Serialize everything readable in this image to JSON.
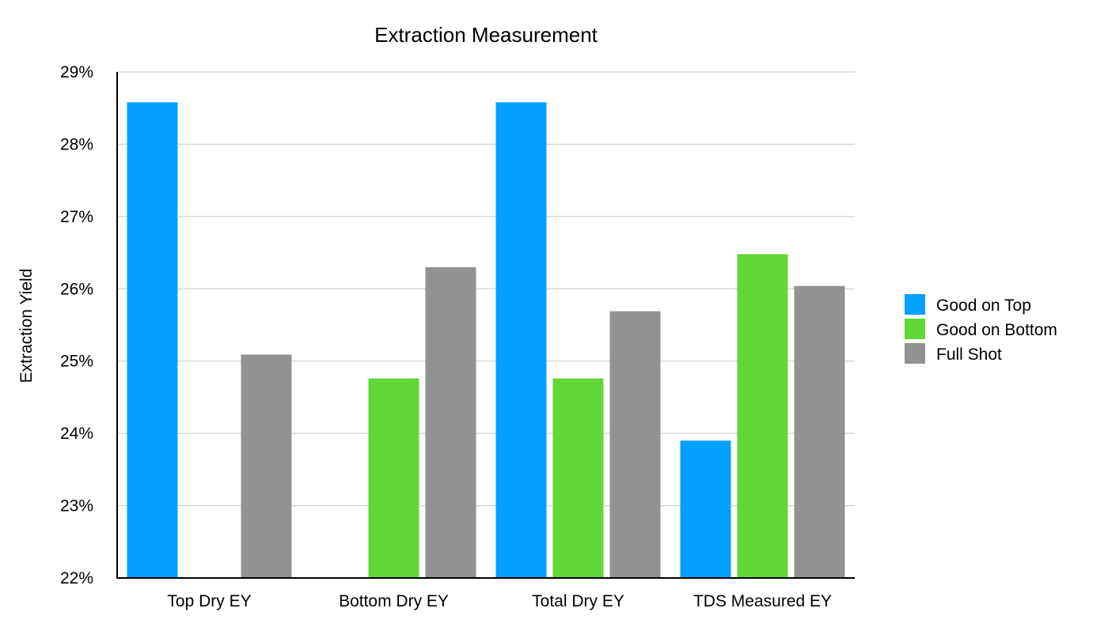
{
  "chart_data": {
    "type": "bar",
    "title": "Extraction Measurement",
    "xlabel": "",
    "ylabel": "Extraction Yield",
    "ylim": [
      22,
      29
    ],
    "yticks": [
      22,
      23,
      24,
      25,
      26,
      27,
      28,
      29
    ],
    "ytick_labels": [
      "22%",
      "23%",
      "24%",
      "25%",
      "26%",
      "27%",
      "28%",
      "29%"
    ],
    "grid": true,
    "legend_position": "right",
    "categories": [
      "Top Dry EY",
      "Bottom Dry EY",
      "Total Dry EY",
      "TDS Measured EY"
    ],
    "series": [
      {
        "name": "Good on Top",
        "color": "#04A0FF",
        "values": [
          28.58,
          null,
          28.58,
          23.9
        ]
      },
      {
        "name": "Good on Bottom",
        "color": "#61D836",
        "values": [
          null,
          24.76,
          24.76,
          26.48
        ]
      },
      {
        "name": "Full Shot",
        "color": "#929292",
        "values": [
          25.09,
          26.3,
          25.69,
          26.04
        ]
      }
    ]
  }
}
